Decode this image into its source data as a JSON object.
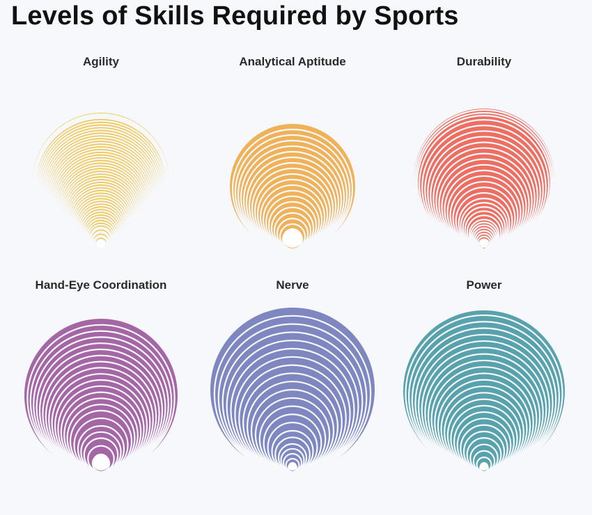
{
  "title": "Levels of Skills Required by Sports",
  "chart_data": [
    {
      "type": "nested-circles",
      "title": "Agility",
      "color": "#f0c650",
      "values": [
        1,
        2,
        3,
        4,
        6,
        7,
        9,
        10,
        12,
        13,
        15,
        16,
        18,
        20,
        22,
        24,
        26,
        28,
        30,
        32,
        34,
        36,
        38,
        40,
        42,
        44,
        46,
        48,
        50,
        52,
        54,
        56,
        58,
        60,
        62,
        64,
        66,
        68,
        70,
        72,
        74,
        76,
        78,
        80,
        82,
        84,
        86,
        88,
        90,
        92,
        94,
        96,
        97,
        98,
        99,
        100
      ]
    },
    {
      "type": "nested-circles",
      "title": "Analytical Aptitude",
      "color": "#f0b258",
      "values": [
        14,
        18,
        22,
        26,
        30,
        34,
        38,
        42,
        46,
        50,
        54,
        58,
        62,
        66,
        70,
        74,
        78,
        82,
        86,
        90
      ]
    },
    {
      "type": "nested-circles",
      "title": "Durability",
      "color": "#ec6f62",
      "values": [
        4,
        7,
        9,
        11,
        13,
        15,
        17,
        19,
        21,
        24,
        27,
        30,
        33,
        36,
        40,
        44,
        48,
        52,
        56,
        60,
        64,
        68,
        72,
        76,
        80,
        84,
        88,
        92,
        95,
        97,
        99,
        100
      ]
    },
    {
      "type": "nested-circles",
      "title": "Hand-Eye Coordination",
      "color": "#a566a6",
      "values": [
        11,
        17,
        22,
        26,
        30,
        35,
        40,
        44,
        48,
        52,
        56,
        60,
        64,
        68,
        72,
        76,
        80,
        84,
        88,
        92,
        96,
        100
      ]
    },
    {
      "type": "nested-circles",
      "title": "Nerve",
      "color": "#7f87c1",
      "values": [
        5,
        8,
        11,
        14,
        17,
        21,
        25,
        30,
        35,
        40,
        45,
        50,
        55,
        60,
        65,
        70,
        75,
        80,
        85,
        90,
        95,
        100
      ]
    },
    {
      "type": "nested-circles",
      "title": "Power",
      "color": "#57a2ac",
      "values": [
        5,
        9,
        13,
        17,
        21,
        25,
        29,
        33,
        37,
        41,
        45,
        49,
        53,
        57,
        61,
        65,
        69,
        73,
        77,
        81,
        85,
        89,
        93,
        97,
        100
      ]
    }
  ]
}
